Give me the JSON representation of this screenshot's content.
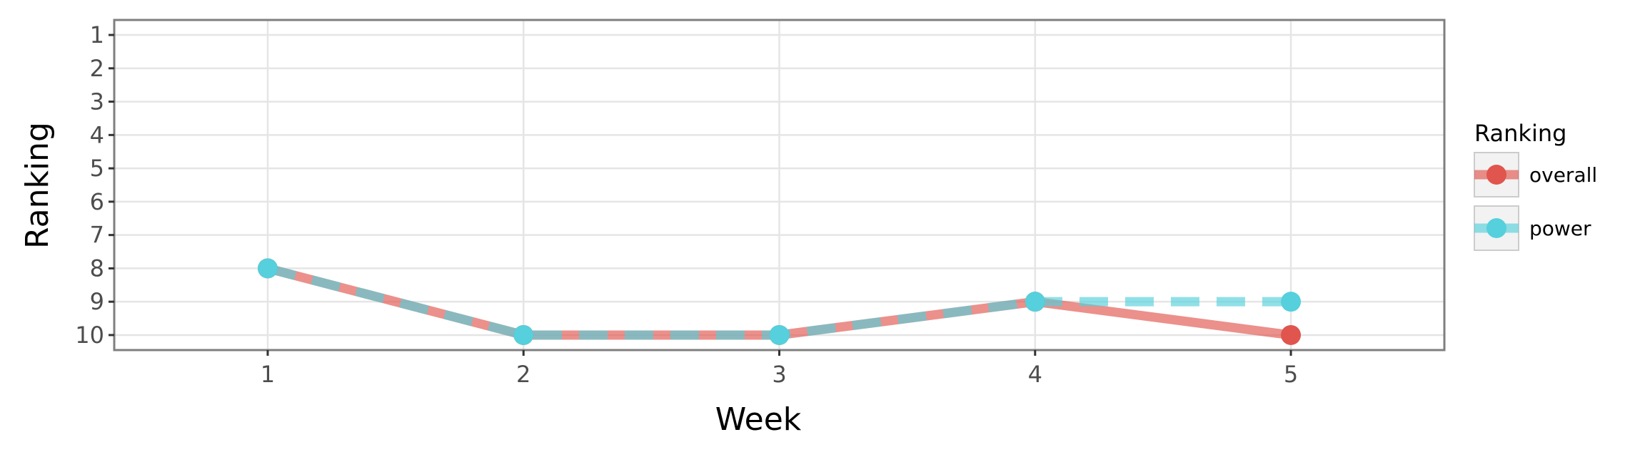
{
  "chart_data": {
    "type": "line",
    "xlabel": "Week",
    "ylabel": "Ranking",
    "x": [
      1,
      2,
      3,
      4,
      5
    ],
    "xlim": [
      0.4,
      5.6
    ],
    "ylim": [
      10.45,
      0.55
    ],
    "y_reversed": true,
    "xticks": [
      "1",
      "2",
      "3",
      "4",
      "5"
    ],
    "yticks": [
      "1",
      "2",
      "3",
      "4",
      "5",
      "6",
      "7",
      "8",
      "9",
      "10"
    ],
    "grid": true,
    "legend": {
      "title": "Ranking",
      "position": "right"
    },
    "series": [
      {
        "name": "overall",
        "values": [
          8,
          10,
          10,
          9,
          10
        ],
        "color": "#e0554d",
        "line_style": "solid"
      },
      {
        "name": "power",
        "values": [
          8,
          10,
          10,
          9,
          9
        ],
        "color": "#55d0dc",
        "line_style": "dashed"
      }
    ]
  }
}
